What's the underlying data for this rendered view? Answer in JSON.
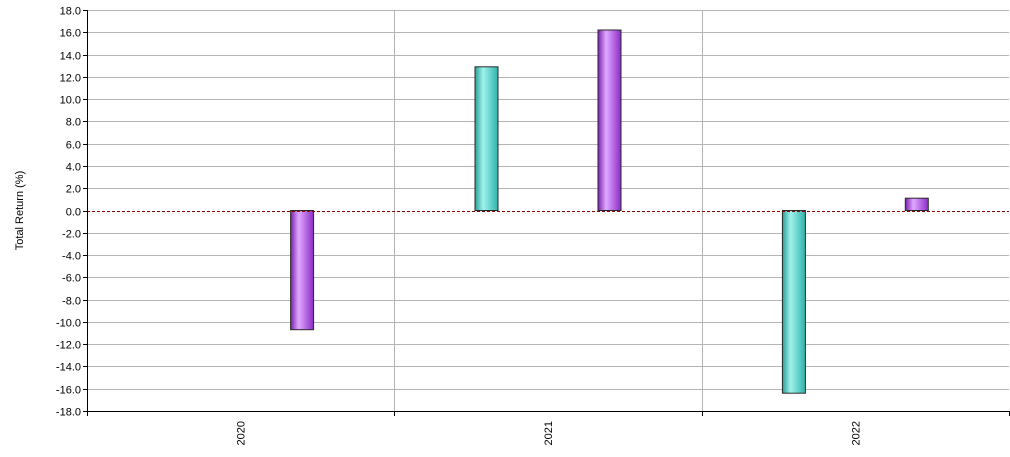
{
  "chart_data": {
    "type": "bar",
    "categories": [
      "2020",
      "2021",
      "2022"
    ],
    "series": [
      {
        "color": "#3fc8c0",
        "values": [
          null,
          12.9,
          -16.4
        ]
      },
      {
        "color": "#a040d8",
        "values": [
          -10.7,
          16.2,
          1.1
        ]
      }
    ],
    "ylabel": "Total Return (%)",
    "ylim": [
      -18,
      18
    ],
    "ytick_step": 2,
    "grid": true,
    "zero_line_color": "#8b0000"
  }
}
